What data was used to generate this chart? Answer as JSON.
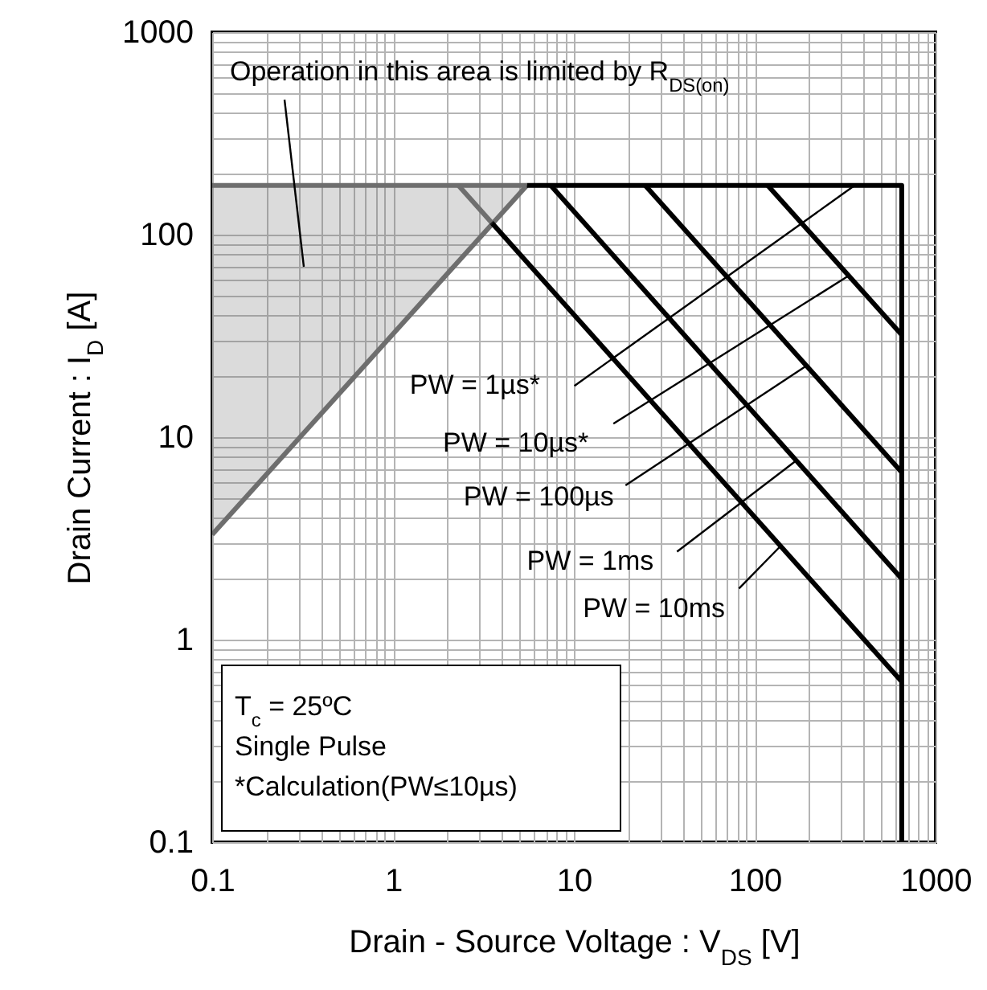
{
  "chart_data": {
    "type": "line",
    "xlabel": "Drain - Source Voltage : V$_{DS}$ [V]",
    "ylabel": "Drain Current : I$_{D}$ [A]",
    "log": "xy",
    "grid": true,
    "legend": false,
    "line_style": "solid",
    "xlim": [
      0.1,
      1000
    ],
    "ylim": [
      0.1,
      1000
    ],
    "xticks": [
      0.1,
      {
        "value": 0.2,
        "label": null
      },
      {
        "value": 0.3,
        "label": null
      },
      {
        "value": 0.4,
        "label": null
      },
      {
        "value": 0.5,
        "label": null
      },
      {
        "value": 0.6,
        "label": null
      },
      {
        "value": 0.7,
        "label": null
      },
      {
        "value": 0.8,
        "label": null
      },
      {
        "value": 0.9,
        "label": null
      },
      1,
      {
        "value": 2,
        "label": null
      },
      {
        "value": 3,
        "label": null
      },
      {
        "value": 4,
        "label": null
      },
      {
        "value": 5,
        "label": null
      },
      {
        "value": 6,
        "label": null
      },
      {
        "value": 7,
        "label": null
      },
      {
        "value": 8,
        "label": null
      },
      {
        "value": 9,
        "label": null
      },
      10,
      {
        "value": 20,
        "label": null
      },
      {
        "value": 30,
        "label": null
      },
      {
        "value": 40,
        "label": null
      },
      {
        "value": 50,
        "label": null
      },
      {
        "value": 60,
        "label": null
      },
      {
        "value": 70,
        "label": null
      },
      {
        "value": 80,
        "label": null
      },
      {
        "value": 90,
        "label": null
      },
      100,
      {
        "value": 200,
        "label": null
      },
      {
        "value": 300,
        "label": null
      },
      {
        "value": 400,
        "label": null
      },
      {
        "value": 500,
        "label": null
      },
      {
        "value": 600,
        "label": null
      },
      {
        "value": 700,
        "label": null
      },
      {
        "value": 800,
        "label": null
      },
      {
        "value": 900,
        "label": null
      },
      1000
    ],
    "yticks": [
      0.1,
      {
        "value": 0.2,
        "label": null
      },
      {
        "value": 0.3,
        "label": null
      },
      {
        "value": 0.4,
        "label": null
      },
      {
        "value": 0.5,
        "label": null
      },
      {
        "value": 0.6,
        "label": null
      },
      {
        "value": 0.7,
        "label": null
      },
      {
        "value": 0.8,
        "label": null
      },
      {
        "value": 0.9,
        "label": null
      },
      1,
      {
        "value": 2,
        "label": null
      },
      {
        "value": 3,
        "label": null
      },
      {
        "value": 4,
        "label": null
      },
      {
        "value": 5,
        "label": null
      },
      {
        "value": 6,
        "label": null
      },
      {
        "value": 7,
        "label": null
      },
      {
        "value": 8,
        "label": null
      },
      {
        "value": 9,
        "label": null
      },
      10,
      {
        "value": 20,
        "label": null
      },
      {
        "value": 30,
        "label": null
      },
      {
        "value": 40,
        "label": null
      },
      {
        "value": 50,
        "label": null
      },
      {
        "value": 60,
        "label": null
      },
      {
        "value": 70,
        "label": null
      },
      {
        "value": 80,
        "label": null
      },
      {
        "value": 90,
        "label": null
      },
      100,
      {
        "value": 200,
        "label": null
      },
      {
        "value": 300,
        "label": null
      },
      {
        "value": 400,
        "label": null
      },
      {
        "value": 500,
        "label": null
      },
      {
        "value": 600,
        "label": null
      },
      {
        "value": 700,
        "label": null
      },
      {
        "value": 800,
        "label": null
      },
      {
        "value": 900,
        "label": null
      },
      1000
    ],
    "series": [
      {
        "color": "#6e6e6e",
        "x": [
          0.1,
          5.5
        ],
        "values": [
          175,
          175
        ]
      },
      {
        "color": "#6e6e6e",
        "x": [
          0.1,
          5.5
        ],
        "values": [
          3.3,
          175
        ],
        "lower": [
          3.3,
          175
        ],
        "upper": [
          175,
          175
        ]
      },
      {
        "color": "#6e6e6e",
        "x": [
          2.3,
          3.5
        ],
        "values": [
          175,
          115
        ]
      },
      {
        "color": "#000000",
        "x": [
          5.5,
          650,
          650
        ],
        "values": [
          175,
          175,
          0.1
        ]
      },
      {
        "color": "#000000",
        "x": [
          118,
          650
        ],
        "values": [
          175,
          32
        ]
      },
      {
        "color": "#000000",
        "x": [
          24.8,
          650
        ],
        "values": [
          175,
          6.7
        ]
      },
      {
        "color": "#000000",
        "x": [
          7.45,
          650
        ],
        "values": [
          175,
          2.0
        ]
      },
      {
        "color": "#000000",
        "x": [
          3.5,
          650
        ],
        "values": [
          115,
          0.62
        ]
      }
    ],
    "annotations": [
      "Operation in this area is limited by R$_{DS(on)}$",
      {
        "text": "PW = 1µs*",
        "x": 357,
        "y": 175
      },
      {
        "text": "PW = 10µs*",
        "x": 330,
        "y": 62.6
      },
      {
        "text": "PW = 100µs",
        "x": 193,
        "y": 22.5
      },
      {
        "text": "PW = 1ms",
        "x": 170,
        "y": 7.67
      },
      {
        "text": "PW = 10ms",
        "x": 139,
        "y": 2.9
      },
      "T$_{c}$ = 25ºC",
      "Single Pulse",
      "*Calculation(PW≤10µs)"
    ]
  }
}
